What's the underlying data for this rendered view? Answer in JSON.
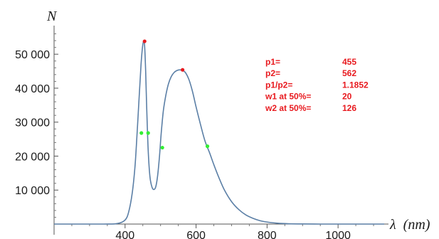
{
  "chart_data": {
    "type": "line",
    "title": "",
    "ylabel": "N",
    "xlabel_symbol": "λ",
    "xlabel_unit": "(nm)",
    "xlim": [
      200,
      1130
    ],
    "ylim": [
      0,
      58000
    ],
    "x_ticks": [
      400,
      600,
      800,
      1000
    ],
    "y_ticks": [
      10000,
      20000,
      30000,
      40000,
      50000
    ],
    "x_tick_labels": [
      "400",
      "600",
      "800",
      "1000"
    ],
    "y_tick_labels": [
      "10 000",
      "20 000",
      "30 000",
      "40 000",
      "50 000"
    ],
    "grid": false,
    "line_color": "#5b7fa6",
    "peak_marker_color": "#e8191e",
    "halfmax_marker_color": "#33ee33",
    "series": [
      {
        "x": [
          200,
          340,
          380,
          400,
          410,
          420,
          428,
          434,
          440,
          445,
          449,
          452,
          455,
          458,
          461,
          465,
          470,
          476,
          482,
          487,
          492,
          497,
          502,
          508,
          515,
          522,
          530,
          538,
          546,
          554,
          562,
          570,
          580,
          590,
          600,
          612,
          625,
          638,
          650,
          665,
          680,
          700,
          720,
          740,
          760,
          780,
          800,
          830,
          860,
          900,
          950,
          1000,
          1130
        ],
        "y": [
          0,
          0,
          200,
          1200,
          3500,
          9000,
          17000,
          27000,
          38000,
          47000,
          52000,
          53700,
          52500,
          45000,
          34000,
          22000,
          14000,
          10800,
          10200,
          11200,
          14500,
          20000,
          27000,
          33500,
          38000,
          41200,
          43400,
          44600,
          45200,
          45400,
          45200,
          44600,
          42500,
          39000,
          34500,
          29500,
          24500,
          21000,
          17500,
          13500,
          10000,
          6600,
          4300,
          2700,
          1700,
          1000,
          600,
          250,
          100,
          30,
          0,
          0,
          0
        ]
      }
    ],
    "peak_points": [
      {
        "x": 455,
        "y": 53800
      },
      {
        "x": 562,
        "y": 45400
      }
    ],
    "halfmax_points": [
      {
        "x": 446,
        "y": 26800
      },
      {
        "x": 465,
        "y": 26800
      },
      {
        "x": 505,
        "y": 22500
      },
      {
        "x": 632,
        "y": 22900
      }
    ],
    "annotations": [
      {
        "label": "p1=",
        "value": "455"
      },
      {
        "label": "p2=",
        "value": "562"
      },
      {
        "label": "p1/p2=",
        "value": "1.1852"
      },
      {
        "label": "w1 at 50%=",
        "value": "20"
      },
      {
        "label": "w2 at 50%=",
        "value": "126"
      }
    ]
  }
}
